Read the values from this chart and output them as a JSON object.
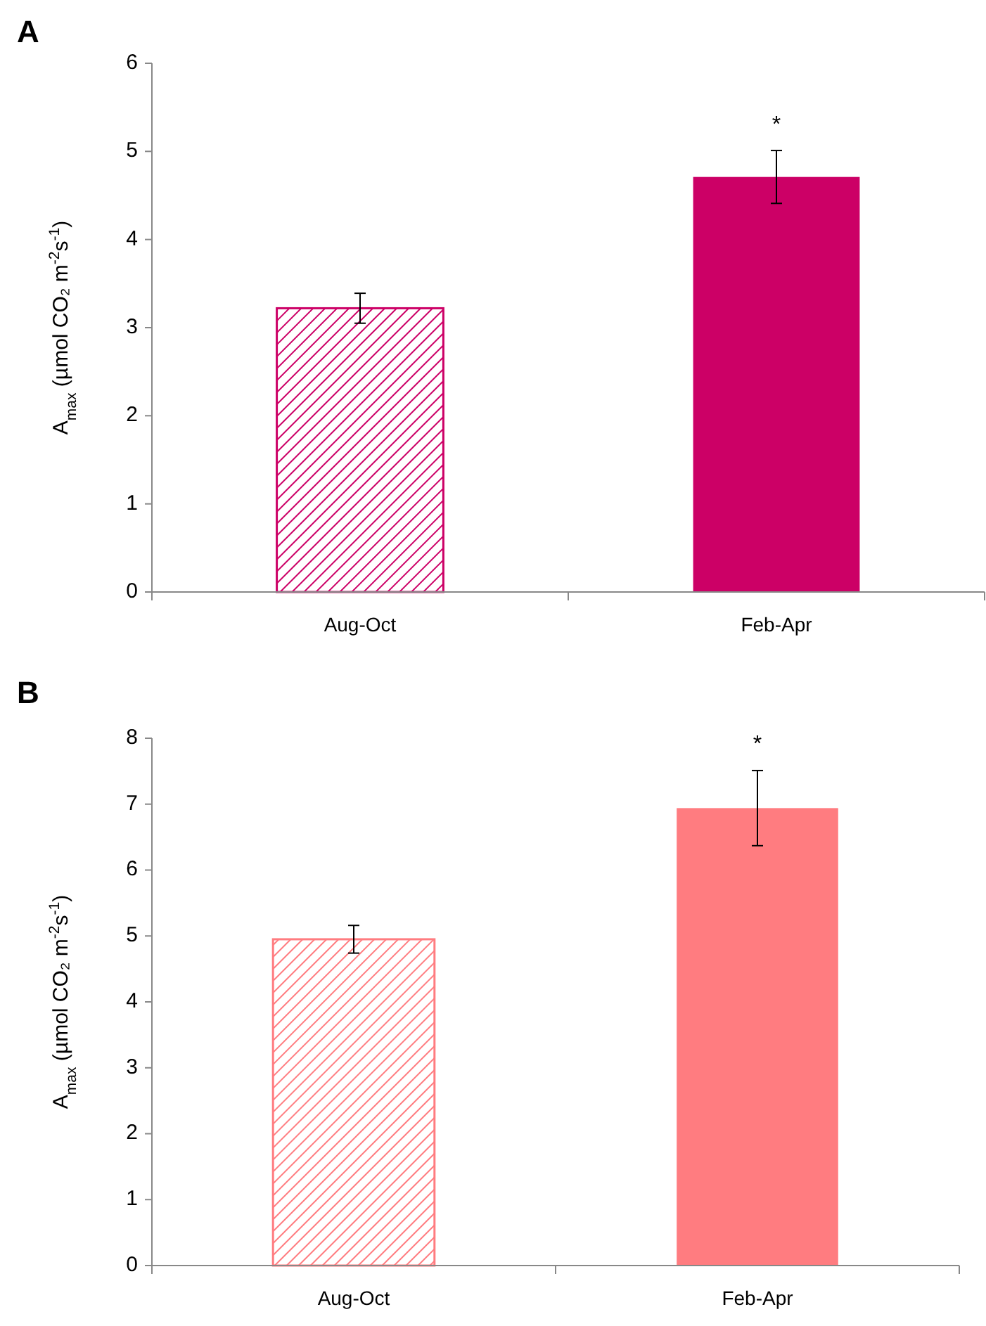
{
  "chart_data": [
    {
      "type": "bar",
      "title": "A",
      "ylabel": "A$_{max}$ (µmol CO₂ m$^{-2}$s$^{-1}$)",
      "categories": [
        "Aug-Oct",
        "Feb-Apr"
      ],
      "values": [
        3.22,
        4.71
      ],
      "errors": [
        0.17,
        0.3
      ],
      "colors": [
        "#cc0066",
        "#cc0066"
      ],
      "ylim": [
        0,
        6
      ],
      "yticks": [
        0,
        1,
        2,
        3,
        4,
        5,
        6
      ],
      "annotations": [
        "*"
      ]
    },
    {
      "type": "bar",
      "title": "B",
      "ylabel": "A$_{max}$ (µmol CO₂ m$^{-2}$s$^{-1}$)",
      "categories": [
        "Aug-Oct",
        "Feb-Apr"
      ],
      "values": [
        4.95,
        6.94
      ],
      "errors": [
        0.21,
        0.57
      ],
      "colors": [
        "#ff7c80",
        "#ff7c80"
      ],
      "ylim": [
        0,
        8
      ],
      "yticks": [
        0,
        1,
        2,
        3,
        4,
        5,
        6,
        7,
        8
      ],
      "annotations": [
        "*"
      ]
    }
  ]
}
